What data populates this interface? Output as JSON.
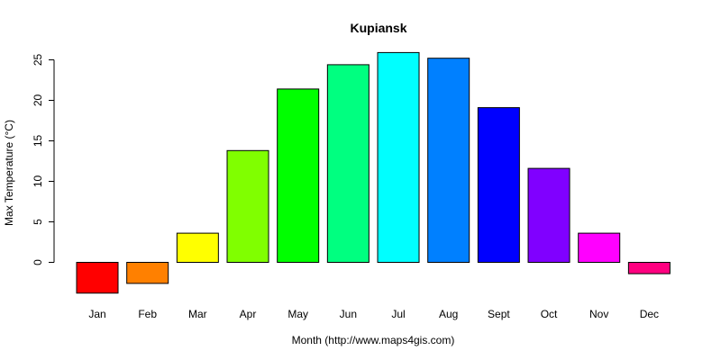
{
  "chart_data": {
    "type": "bar",
    "title": "Kupiansk",
    "xlabel": "Month (http://www.maps4gis.com)",
    "ylabel": "Max Temperature (°C)",
    "categories": [
      "Jan",
      "Feb",
      "Mar",
      "Apr",
      "May",
      "Jun",
      "Jul",
      "Aug",
      "Sept",
      "Oct",
      "Nov",
      "Dec"
    ],
    "values": [
      -3.8,
      -2.6,
      3.6,
      13.8,
      21.4,
      24.4,
      25.9,
      25.2,
      19.1,
      11.6,
      3.6,
      -1.4
    ],
    "colors": [
      "#FF0000",
      "#FF8000",
      "#FFFF00",
      "#80FF00",
      "#00FF00",
      "#00FF80",
      "#00FFFF",
      "#0080FF",
      "#0000FF",
      "#8000FF",
      "#FF00FF",
      "#FF0080"
    ],
    "yticks": [
      0,
      5,
      10,
      15,
      20,
      25
    ],
    "ylim": [
      -4,
      26
    ],
    "grid": false,
    "legend": "none"
  }
}
